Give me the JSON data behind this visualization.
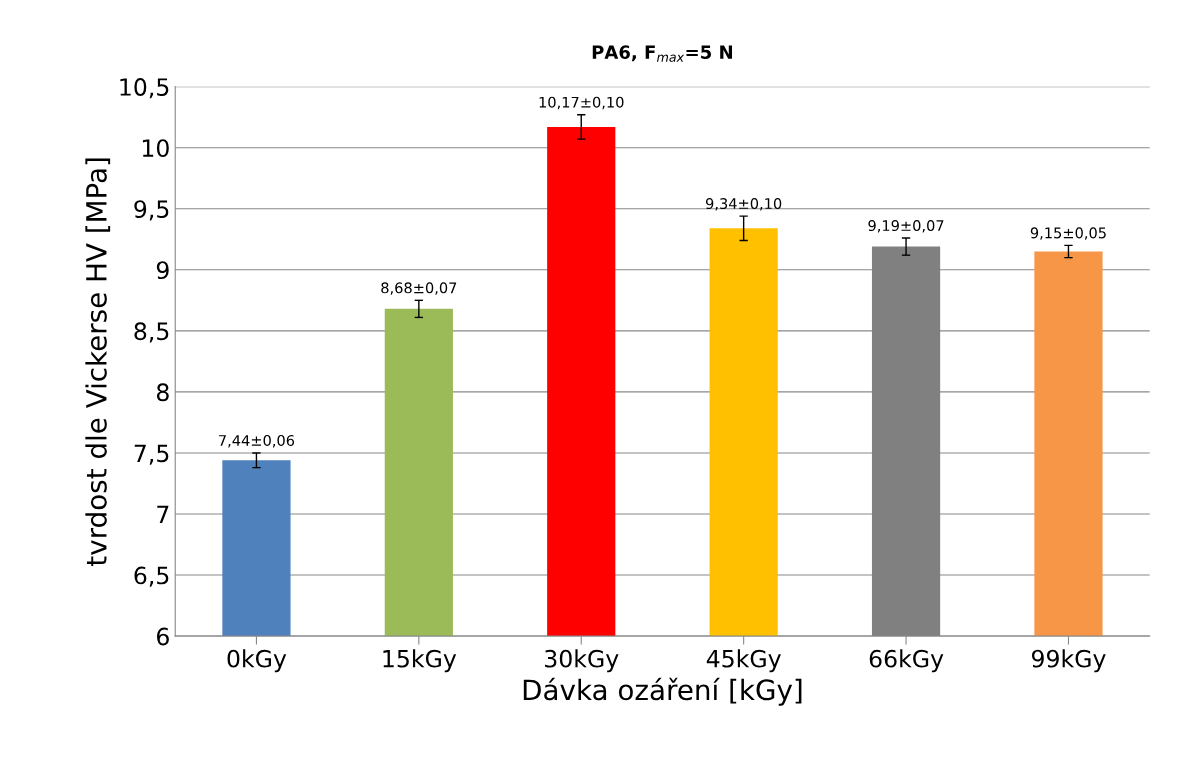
{
  "chart_data": {
    "type": "bar",
    "title": "PA6, F$_{max}$=5 N",
    "xlabel": "Dávka ozáření [kGy]",
    "ylabel": "tvrdost dle Vickerse HV [MPa]",
    "categories": [
      "0kGy",
      "15kGy",
      "30kGy",
      "45kGy",
      "66kGy",
      "99kGy"
    ],
    "values": [
      7.44,
      8.68,
      10.17,
      9.34,
      9.19,
      9.15
    ],
    "errors": [
      0.06,
      0.07,
      0.1,
      0.1,
      0.07,
      0.05
    ],
    "value_labels": [
      "7,44±0,06",
      "8,68±0,07",
      "10,17±0,10",
      "9,34±0,10",
      "9,19±0,07",
      "9,15±0,05"
    ],
    "colors": [
      "#4f81bd",
      "#9bbb59",
      "#ff0000",
      "#ffc000",
      "#808080",
      "#f79646"
    ],
    "ylim": [
      6,
      10.5
    ],
    "yticks": [
      6,
      {
        "value": 6.5,
        "label": "6,5"
      },
      7,
      {
        "value": 7.5,
        "label": "7,5"
      },
      8,
      {
        "value": 8.5,
        "label": "8,5"
      },
      9,
      {
        "value": 9.5,
        "label": "9,5"
      },
      10,
      {
        "value": 10.5,
        "label": "10,5"
      }
    ],
    "grid": "y",
    "legend": false
  }
}
